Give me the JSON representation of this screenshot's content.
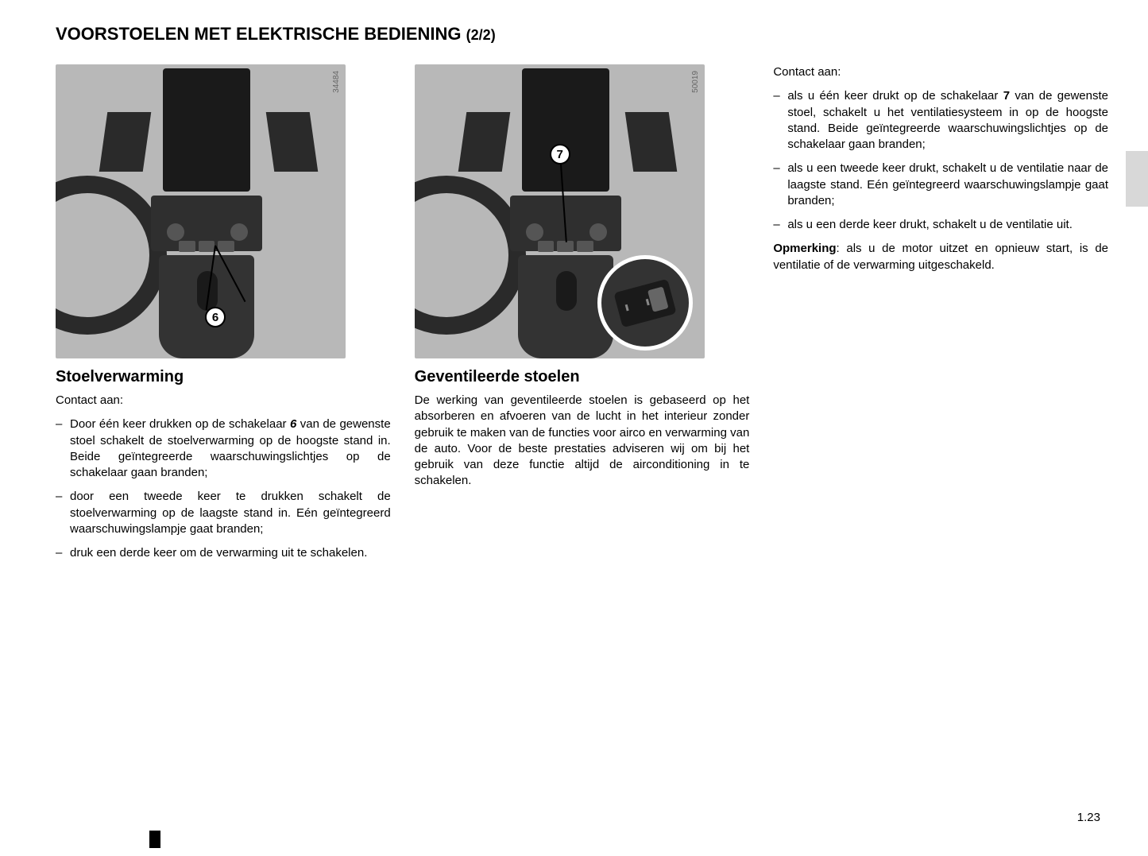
{
  "title_main": "VOORSTOELEN MET ELEKTRISCHE BEDIENING",
  "title_sub": "(2/2)",
  "page_number": "1.23",
  "figure1": {
    "id": "34484",
    "callout": "6"
  },
  "figure2": {
    "id": "50019",
    "callout": "7"
  },
  "col1": {
    "heading": "Stoelverwarming",
    "intro": "Contact aan:",
    "b1_pre": "Door één keer drukken op de schakelaar ",
    "b1_ref": "6",
    "b1_post": " van de gewenste stoel schakelt de stoelverwarming op de hoogste stand in. Beide geïntegreerde waarschuwingslichtjes op de schakelaar gaan branden;",
    "b2": "door een tweede keer te drukken schakelt de stoelverwarming op de laagste stand in. Eén geïntegreerd waarschuwingslampje gaat branden;",
    "b3": "druk een derde keer om de verwarming uit te schakelen."
  },
  "col2": {
    "heading": "Geventileerde stoelen",
    "para": "De werking van geventileerde stoelen is gebaseerd op het absorberen en afvoeren van de lucht in het interieur zonder gebruik te maken van de functies voor airco en verwarming van de auto. Voor de beste prestaties adviseren wij om bij het gebruik van deze functie altijd de airconditioning in te schakelen."
  },
  "col3": {
    "intro": "Contact aan:",
    "b1_pre": "als u één keer drukt op de schakelaar ",
    "b1_ref": "7",
    "b1_post": " van de gewenste stoel, schakelt u het ventilatiesysteem in op de hoogste stand. Beide geïntegreerde waarschuwingslichtjes op de schakelaar gaan branden;",
    "b2": "als u een tweede keer drukt, schakelt u de ventilatie naar de laagste stand. Eén geïntegreerd waarschuwingslampje gaat branden;",
    "b3": "als u een derde keer drukt, schakelt u de ventilatie uit.",
    "note_label": "Opmerking",
    "note_text": ": als u de motor uitzet en opnieuw start, is de ventilatie of de verwarming uitgeschakeld."
  }
}
